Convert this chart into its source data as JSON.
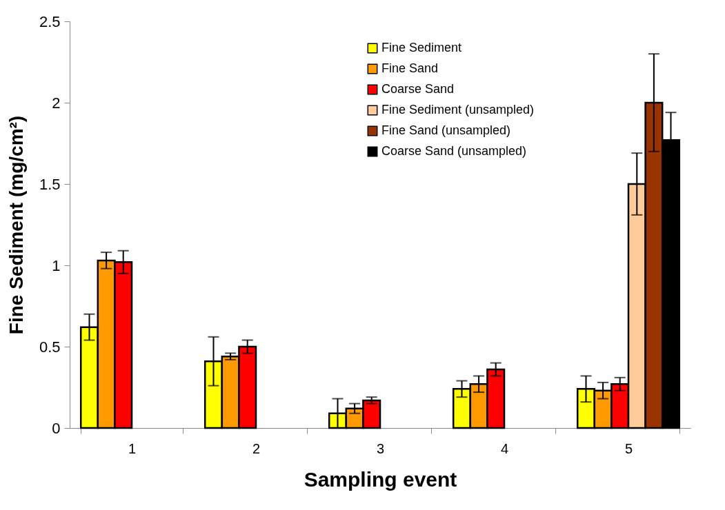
{
  "chart_data": {
    "type": "bar",
    "xlabel": "Sampling event",
    "ylabel": "Fine Sediment (mg/cm²)",
    "categories": [
      "1",
      "2",
      "3",
      "4",
      "5"
    ],
    "series": [
      {
        "name": "Fine Sediment",
        "color": "#ffff00",
        "values": [
          0.62,
          0.41,
          0.09,
          0.24,
          0.24
        ],
        "errors": [
          0.08,
          0.15,
          0.09,
          0.05,
          0.08
        ]
      },
      {
        "name": "Fine Sand",
        "color": "#ff9900",
        "values": [
          1.03,
          0.44,
          0.12,
          0.27,
          0.23
        ],
        "errors": [
          0.05,
          0.02,
          0.03,
          0.05,
          0.05
        ]
      },
      {
        "name": "Coarse Sand",
        "color": "#ff0000",
        "values": [
          1.02,
          0.5,
          0.17,
          0.36,
          0.27
        ],
        "errors": [
          0.07,
          0.04,
          0.02,
          0.04,
          0.04
        ]
      },
      {
        "name": "Fine Sediment (unsampled)",
        "color": "#ffcc99",
        "values": [
          null,
          null,
          null,
          null,
          1.5
        ],
        "errors": [
          null,
          null,
          null,
          null,
          0.19
        ]
      },
      {
        "name": "Fine Sand (unsampled)",
        "color": "#993300",
        "values": [
          null,
          null,
          null,
          null,
          2.0
        ],
        "errors": [
          null,
          null,
          null,
          null,
          0.3
        ]
      },
      {
        "name": "Coarse Sand (unsampled)",
        "color": "#000000",
        "values": [
          null,
          null,
          null,
          null,
          1.77
        ],
        "errors": [
          null,
          null,
          null,
          null,
          0.17
        ]
      }
    ],
    "ylim": [
      0,
      2.5
    ],
    "yticks": [
      0,
      0.5,
      1,
      1.5,
      2,
      2.5
    ],
    "legend": "top right"
  }
}
